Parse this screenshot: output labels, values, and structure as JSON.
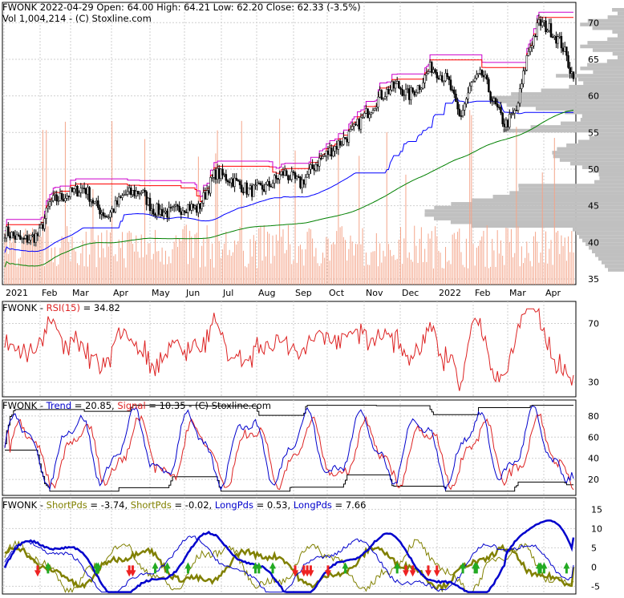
{
  "colors": {
    "grid": "#cfcfcf",
    "candle": "#000000",
    "volume": "#f4a58a",
    "profile": "#c0c0c0",
    "ma_blue": "#0000ff",
    "ma_green": "#008000",
    "ma_magenta": "#cc00cc",
    "ma_red": "#ff0000",
    "rsi": "#dd2222",
    "trend": "#0000cc",
    "signal": "#dd2222",
    "olive": "#808000",
    "up_arrow": "#22aa22",
    "down_arrow": "#ee2222"
  },
  "price_panel": {
    "header_line1": "FWONK  2022-04-29 Open: 64.00  High: 64.21  Low: 62.20  Close: 62.33 (-3.5%)",
    "header_line2": "Vol 1,004,214  - (C) Stoxline.com",
    "y_ticks": [
      "70",
      "65",
      "60",
      "55",
      "50",
      "45",
      "40",
      "35"
    ],
    "x_labels": [
      "2021",
      "Feb",
      "Mar",
      "Apr",
      "May",
      "Jun",
      "Jul",
      "Aug",
      "Sep",
      "Oct",
      "Nov",
      "Dec",
      "2022",
      "Feb",
      "Mar",
      "Apr"
    ]
  },
  "rsi_panel": {
    "name": "FWONK - ",
    "label": "RSI(15)",
    "value": " = 34.82",
    "y_ticks": [
      "70",
      "30"
    ]
  },
  "trend_panel": {
    "name": "FWONK - ",
    "trend_label": "Trend",
    "trend_value": " = 20.85, ",
    "signal_label": "Signal",
    "signal_value": " = 10.35  - (C) Stoxline.com",
    "y_ticks": [
      "80",
      "60",
      "40",
      "20"
    ]
  },
  "pds_panel": {
    "name": "FWONK - ",
    "short1_label": "ShortPds",
    "short1_value": " = -3.74, ",
    "short2_label": "ShortPds",
    "short2_value": " = -0.02, ",
    "long1_label": "LongPds",
    "long1_value": " = 0.53, ",
    "long2_label": "LongPds",
    "long2_value": " = 7.66",
    "y_ticks": [
      "15",
      "10",
      "5",
      "0",
      "-5"
    ]
  },
  "chart_data": {
    "type": "line",
    "ticker": "FWONK",
    "x_range": [
      "2021-01",
      "2022-04-29"
    ],
    "price_ylim": [
      35,
      72
    ],
    "price_close_anchor": [
      [
        0,
        41.5
      ],
      [
        0.03,
        40.2
      ],
      [
        0.06,
        41.0
      ],
      [
        0.08,
        45.5
      ],
      [
        0.11,
        46.5
      ],
      [
        0.14,
        47.5
      ],
      [
        0.16,
        45.0
      ],
      [
        0.18,
        43.5
      ],
      [
        0.21,
        46.5
      ],
      [
        0.24,
        47.0
      ],
      [
        0.26,
        44.5
      ],
      [
        0.29,
        44.0
      ],
      [
        0.32,
        45.0
      ],
      [
        0.34,
        44.5
      ],
      [
        0.37,
        49.5
      ],
      [
        0.4,
        48.5
      ],
      [
        0.43,
        47.0
      ],
      [
        0.46,
        47.5
      ],
      [
        0.49,
        49.5
      ],
      [
        0.52,
        48.0
      ],
      [
        0.55,
        51.0
      ],
      [
        0.58,
        53.0
      ],
      [
        0.61,
        55.0
      ],
      [
        0.63,
        57.0
      ],
      [
        0.66,
        60.0
      ],
      [
        0.69,
        61.5
      ],
      [
        0.71,
        60.0
      ],
      [
        0.73,
        61.5
      ],
      [
        0.75,
        64.0
      ],
      [
        0.78,
        62.0
      ],
      [
        0.8,
        57.0
      ],
      [
        0.82,
        61.5
      ],
      [
        0.84,
        63.0
      ],
      [
        0.86,
        59.0
      ],
      [
        0.88,
        56.0
      ],
      [
        0.9,
        58.0
      ],
      [
        0.92,
        66.0
      ],
      [
        0.94,
        70.0
      ],
      [
        0.96,
        69.0
      ],
      [
        0.98,
        67.0
      ],
      [
        1.0,
        62.33
      ]
    ],
    "rsi_ylim": [
      20,
      85
    ],
    "rsi_last": 34.82,
    "trend_ylim": [
      5,
      95
    ],
    "trend_last": 20.85,
    "signal_last": 10.35,
    "pds_ylim": [
      -7,
      18
    ],
    "short_pds": [
      -3.74,
      -0.02
    ],
    "long_pds": [
      0.53,
      7.66
    ]
  }
}
